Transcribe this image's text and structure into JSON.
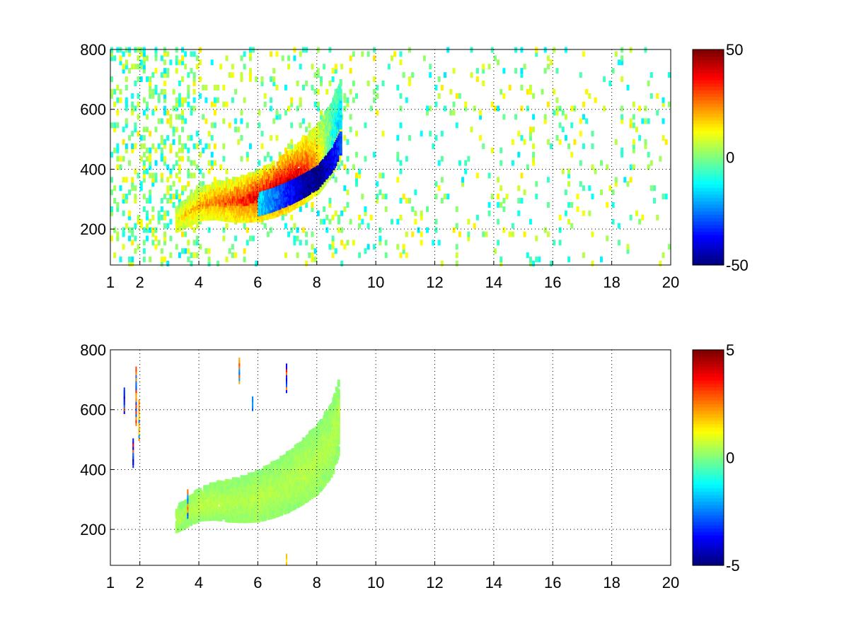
{
  "chart_data": [
    {
      "type": "heatmap",
      "title": "",
      "xlabel": "",
      "ylabel": "",
      "xlim": [
        1,
        20
      ],
      "ylim": [
        80,
        800
      ],
      "xticks": [
        "1",
        "2",
        "4",
        "6",
        "8",
        "10",
        "12",
        "14",
        "16",
        "18",
        "20"
      ],
      "xtick_values": [
        1,
        2,
        4,
        6,
        8,
        10,
        12,
        14,
        16,
        18,
        20
      ],
      "yticks": [
        "200",
        "400",
        "600",
        "800"
      ],
      "ytick_values": [
        200,
        400,
        600,
        800
      ],
      "grid": true,
      "grid_style": "dotted",
      "colormap": "jet",
      "colorbar": {
        "min": -50,
        "max": 50,
        "ticks": [
          "50",
          "0",
          "-50"
        ],
        "tick_values": [
          50,
          0,
          -50
        ]
      },
      "pattern": "noisy speckle across all x; curved ridge of high values from about (3.2, 220) rising to (9, 650) with a positive (red) band above a negative (blue) band",
      "ridge": {
        "x": [
          3.2,
          3.6,
          4.0,
          4.5,
          5.0,
          5.5,
          6.0,
          6.5,
          7.0,
          7.5,
          8.0,
          8.5,
          8.8
        ],
        "y": [
          225,
          250,
          275,
          285,
          285,
          290,
          300,
          320,
          345,
          380,
          420,
          490,
          560
        ],
        "values": [
          12,
          18,
          22,
          26,
          30,
          36,
          42,
          46,
          48,
          40,
          20,
          -10,
          -20
        ]
      },
      "negative_band": {
        "x": [
          6.0,
          6.5,
          7.0,
          7.5,
          8.0,
          8.5,
          8.8
        ],
        "y": [
          270,
          285,
          305,
          330,
          360,
          420,
          480
        ],
        "values": [
          -15,
          -25,
          -35,
          -45,
          -50,
          -40,
          -30
        ]
      }
    },
    {
      "type": "heatmap",
      "title": "",
      "xlabel": "",
      "ylabel": "",
      "xlim": [
        1,
        20
      ],
      "ylim": [
        80,
        800
      ],
      "xticks": [
        "1",
        "2",
        "4",
        "6",
        "8",
        "10",
        "12",
        "14",
        "16",
        "18",
        "20"
      ],
      "xtick_values": [
        1,
        2,
        4,
        6,
        8,
        10,
        12,
        14,
        16,
        18,
        20
      ],
      "yticks": [
        "200",
        "400",
        "600",
        "800"
      ],
      "ytick_values": [
        200,
        400,
        600,
        800
      ],
      "grid": true,
      "grid_style": "dotted",
      "colormap": "jet",
      "colorbar": {
        "min": -5,
        "max": 5,
        "ticks": [
          "5",
          "0",
          "-5"
        ],
        "tick_values": [
          5,
          0,
          -5
        ]
      },
      "pattern": "mostly empty; same curved ridge from about (3.2, 220) to (8.7, 620) with values near 0.5; a few sparse vertical streaks near x=1.5-2, 3.6, 5.4, 7",
      "ridge": {
        "x": [
          3.2,
          3.6,
          4.0,
          4.5,
          5.0,
          5.5,
          6.0,
          6.5,
          7.0,
          7.5,
          8.0,
          8.5,
          8.7
        ],
        "y": [
          225,
          250,
          275,
          285,
          285,
          290,
          300,
          320,
          345,
          380,
          420,
          490,
          560
        ],
        "values": [
          0.5,
          0.5,
          0.6,
          0.6,
          0.5,
          0.5,
          0.6,
          0.5,
          0.5,
          0.6,
          0.5,
          0.5,
          0.5
        ]
      },
      "streaks": [
        {
          "x": 1.45,
          "y0": 590,
          "y1": 660,
          "value": -4
        },
        {
          "x": 1.75,
          "y0": 410,
          "y1": 490,
          "value": -4.5
        },
        {
          "x": 1.85,
          "y0": 550,
          "y1": 730,
          "value": 3.5
        },
        {
          "x": 1.95,
          "y0": 500,
          "y1": 620,
          "value": 2.5
        },
        {
          "x": 3.6,
          "y0": 240,
          "y1": 320,
          "value": -3
        },
        {
          "x": 5.35,
          "y0": 690,
          "y1": 760,
          "value": 3
        },
        {
          "x": 5.8,
          "y0": 600,
          "y1": 630,
          "value": -3.5
        },
        {
          "x": 6.95,
          "y0": 660,
          "y1": 740,
          "value": -4
        },
        {
          "x": 6.95,
          "y0": 85,
          "y1": 110,
          "value": 2
        }
      ]
    }
  ]
}
